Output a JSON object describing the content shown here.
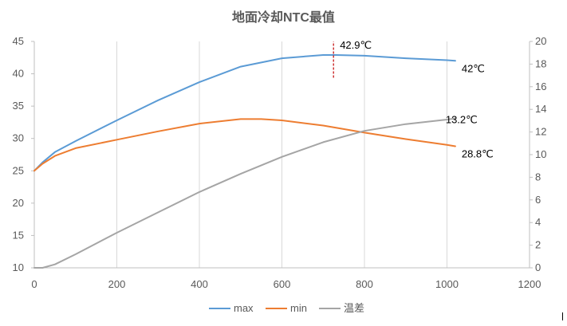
{
  "chart_data": {
    "type": "line",
    "title": "地面冷却NTC最值",
    "xlabel": "",
    "ylabel": "",
    "y2label": "",
    "xlim": [
      0,
      1200
    ],
    "ylim": [
      10,
      45
    ],
    "y2lim": [
      0,
      20
    ],
    "x_ticks": [
      "0",
      "200",
      "400",
      "600",
      "800",
      "1000",
      "1200"
    ],
    "y_ticks": [
      "10",
      "15",
      "20",
      "25",
      "30",
      "35",
      "40",
      "45"
    ],
    "y2_ticks": [
      "0",
      "2",
      "4",
      "6",
      "8",
      "10",
      "12",
      "14",
      "16",
      "18",
      "20"
    ],
    "grid": "vertical",
    "legend_position": "bottom",
    "series": [
      {
        "name": "max",
        "color": "#5B9BD5",
        "axis": "left",
        "points": [
          [
            0,
            25.0
          ],
          [
            20,
            26.3
          ],
          [
            50,
            27.9
          ],
          [
            100,
            29.6
          ],
          [
            200,
            32.8
          ],
          [
            300,
            35.9
          ],
          [
            400,
            38.7
          ],
          [
            500,
            41.1
          ],
          [
            600,
            42.4
          ],
          [
            700,
            42.9
          ],
          [
            730,
            42.9
          ],
          [
            800,
            42.8
          ],
          [
            900,
            42.4
          ],
          [
            1000,
            42.1
          ],
          [
            1020,
            42.0
          ]
        ]
      },
      {
        "name": "min",
        "color": "#ED7D31",
        "axis": "left",
        "points": [
          [
            0,
            25.0
          ],
          [
            20,
            26.1
          ],
          [
            50,
            27.3
          ],
          [
            100,
            28.5
          ],
          [
            200,
            29.8
          ],
          [
            300,
            31.1
          ],
          [
            400,
            32.3
          ],
          [
            500,
            33.0
          ],
          [
            550,
            33.0
          ],
          [
            600,
            32.8
          ],
          [
            700,
            32.0
          ],
          [
            800,
            30.9
          ],
          [
            900,
            29.9
          ],
          [
            1000,
            29.0
          ],
          [
            1020,
            28.8
          ]
        ]
      },
      {
        "name": "温差",
        "color": "#A5A5A5",
        "axis": "right",
        "points": [
          [
            0,
            0.0
          ],
          [
            20,
            0.0
          ],
          [
            50,
            0.3
          ],
          [
            100,
            1.2
          ],
          [
            200,
            3.1
          ],
          [
            300,
            4.9
          ],
          [
            400,
            6.7
          ],
          [
            500,
            8.3
          ],
          [
            600,
            9.8
          ],
          [
            700,
            11.1
          ],
          [
            800,
            12.1
          ],
          [
            900,
            12.7
          ],
          [
            1000,
            13.1
          ],
          [
            1020,
            13.2
          ]
        ]
      }
    ],
    "annotations": [
      {
        "text": "42.9℃",
        "x": 725,
        "y": 42.9,
        "axis": "left"
      },
      {
        "text": "42℃",
        "x": 1020,
        "y": 42.0,
        "axis": "left"
      },
      {
        "text": "28.8℃",
        "x": 1020,
        "y": 28.8,
        "axis": "left"
      },
      {
        "text": "13.2℃",
        "x": 1020,
        "y": 13.2,
        "axis": "right"
      }
    ],
    "marker_line": {
      "x": 725,
      "y_from": 39.4,
      "y_to": 45.0,
      "color": "#C00000",
      "style": "dashed"
    }
  }
}
